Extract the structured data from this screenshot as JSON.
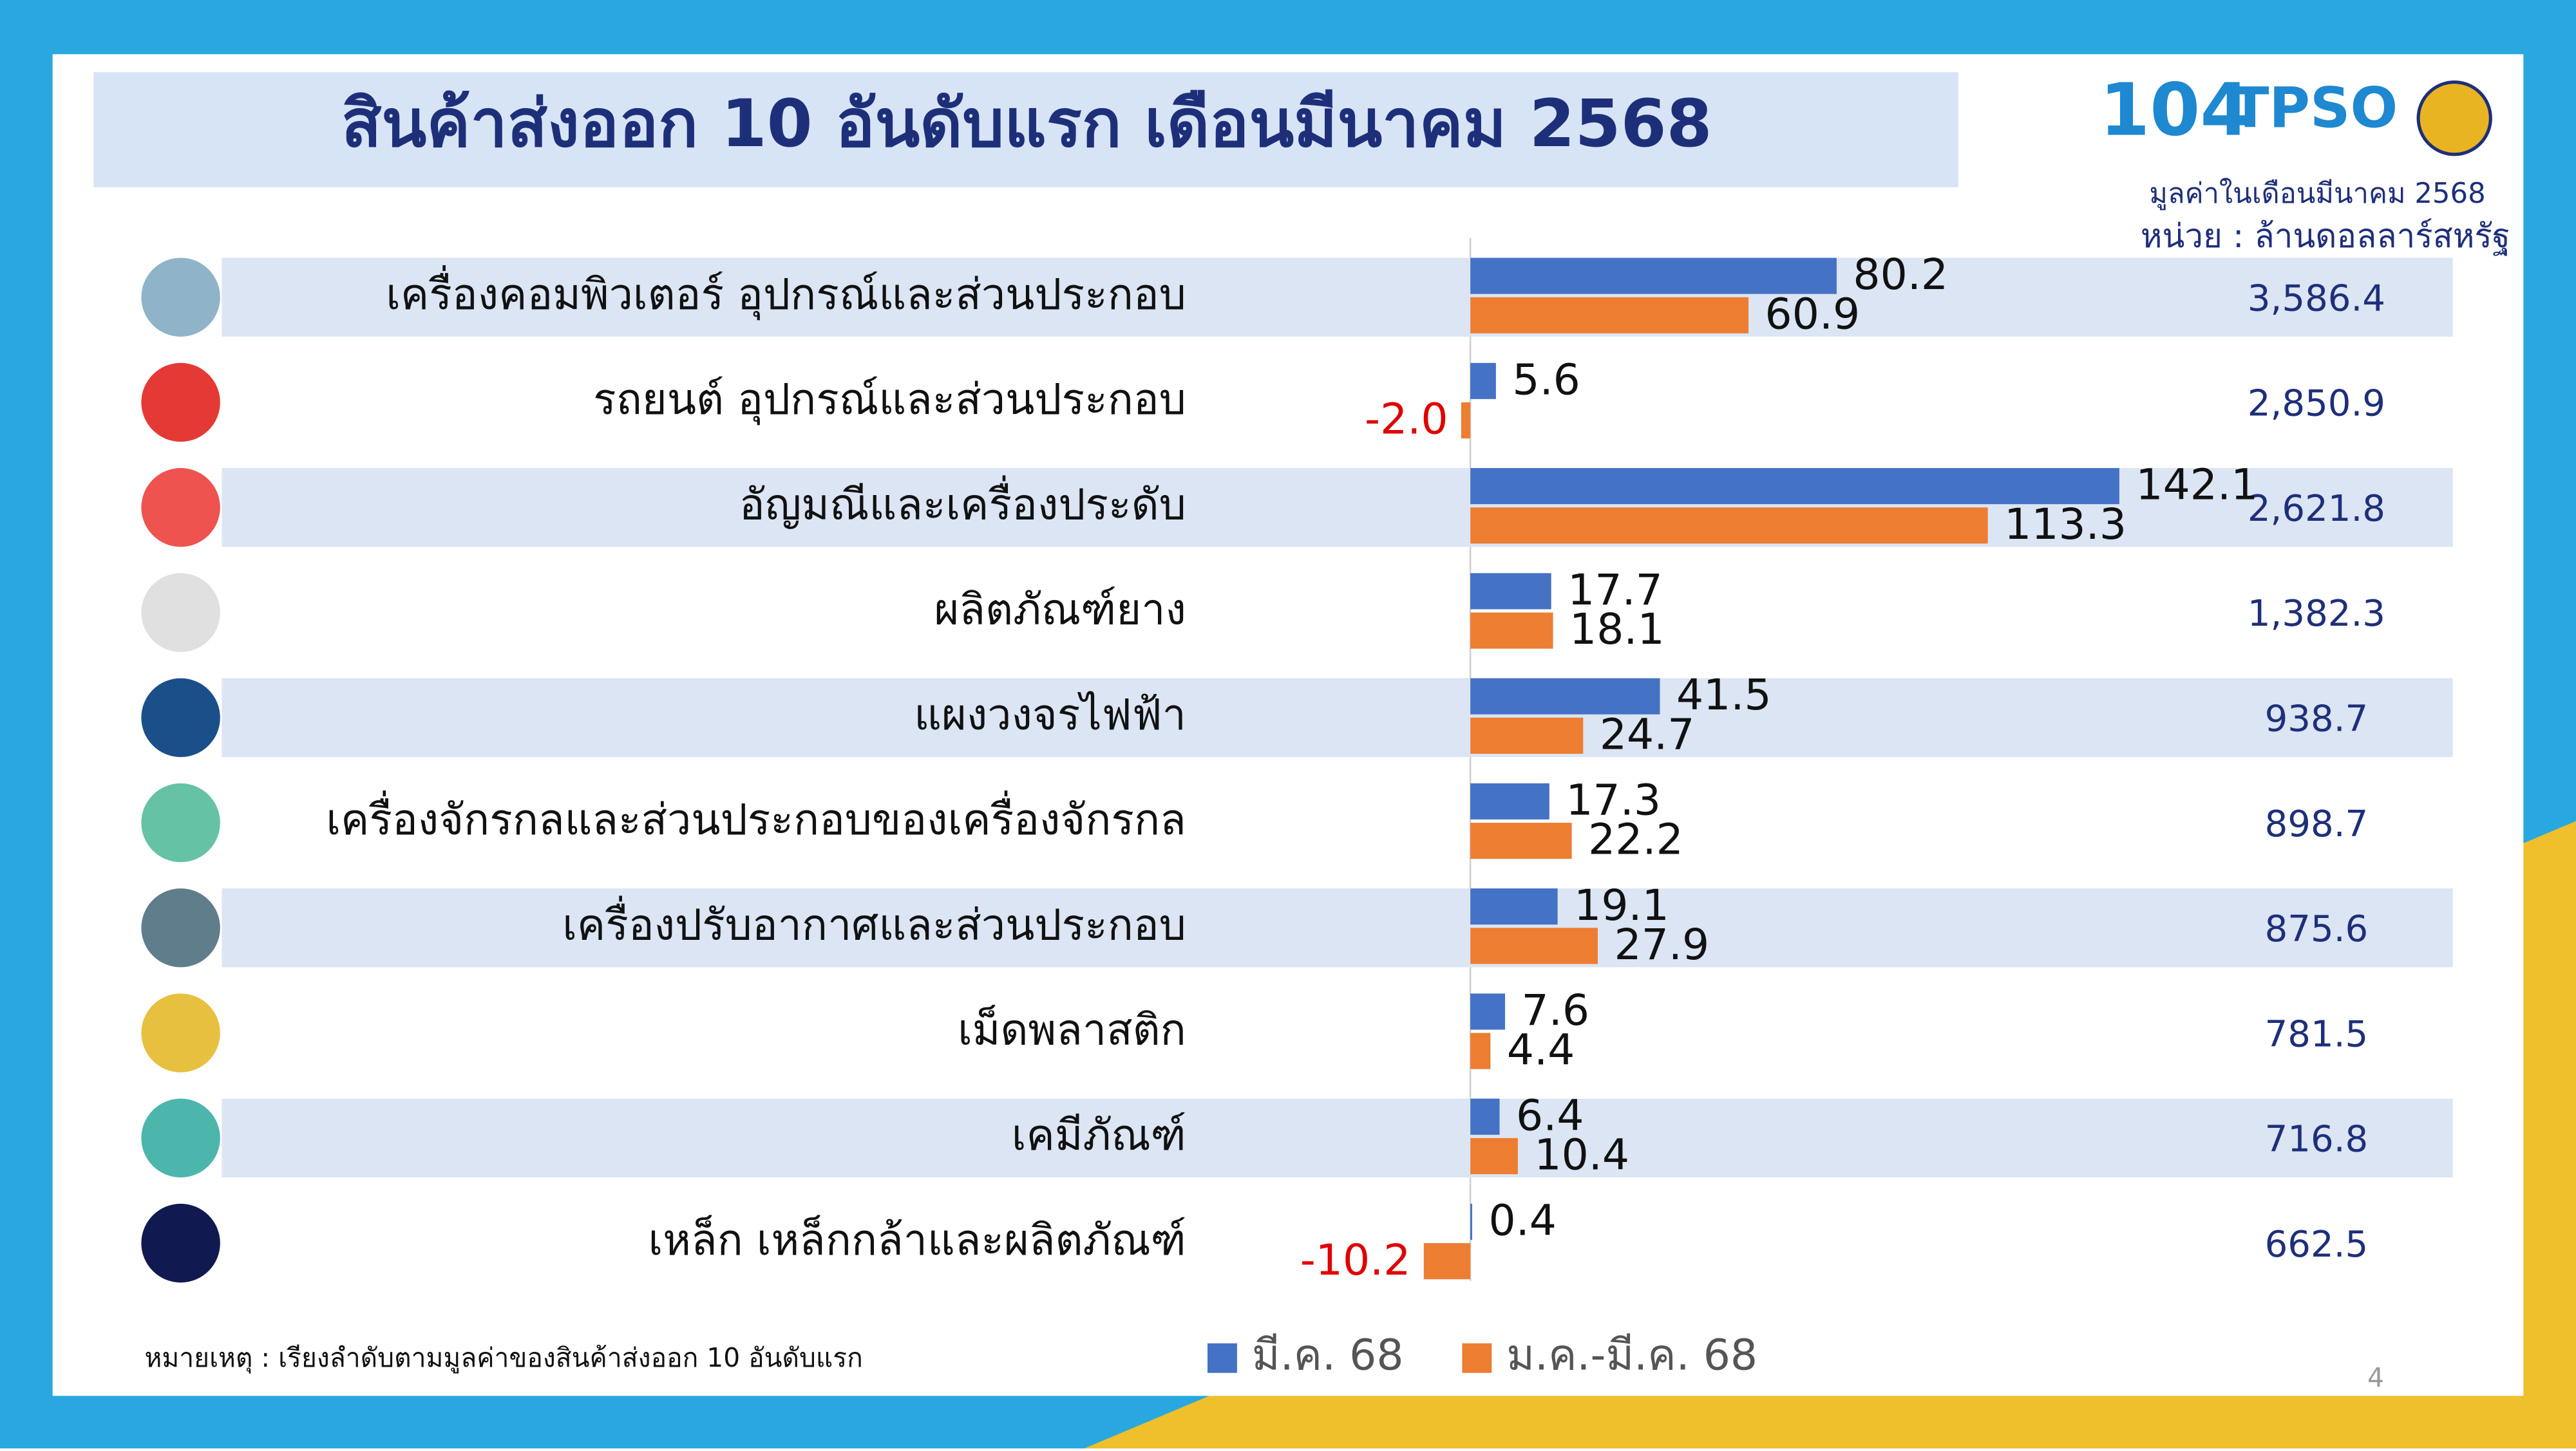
{
  "chart_data": {
    "type": "bar",
    "title": "สินค้าส่งออก 10 อันดับแรก เดือนมีนาคม 2568",
    "subtitle": "มูลค่าในเดือนมีนาคม 2568",
    "unit": "หน่วย : ล้านดอลลาร์สหรัฐ",
    "note": "หมายเหตุ : เรียงลำดับตามมูลค่าของสินค้าส่งออก 10 อันดับแรก",
    "page_number": "4",
    "logo": "TPSO",
    "categories": [
      "เครื่องคอมพิวเตอร์ อุปกรณ์และส่วนประกอบ",
      "รถยนต์ อุปกรณ์และส่วนประกอบ",
      "อัญมณีและเครื่องประดับ",
      "ผลิตภัณฑ์ยาง",
      "แผงวงจรไฟฟ้า",
      "เครื่องจักรกลและส่วนประกอบของเครื่องจักรกล",
      "เครื่องปรับอากาศและส่วนประกอบ",
      "เม็ดพลาสติก",
      "เคมีภัณฑ์",
      "เหล็ก เหล็กกล้าและผลิตภัณฑ์"
    ],
    "value_column": [
      "3,586.4",
      "2,850.9",
      "2,621.8",
      "1,382.3",
      "938.7",
      "898.7",
      "875.6",
      "781.5",
      "716.8",
      "662.5"
    ],
    "series": [
      {
        "name": "มี.ค. 68",
        "color": "#4472c4",
        "values": [
          80.2,
          5.6,
          142.1,
          17.7,
          41.5,
          17.3,
          19.1,
          7.6,
          6.4,
          0.4
        ]
      },
      {
        "name": "ม.ค.-มี.ค. 68",
        "color": "#ed7d31",
        "values": [
          60.9,
          -2.0,
          113.3,
          18.1,
          24.7,
          22.2,
          27.9,
          4.4,
          10.4,
          -10.2
        ],
        "value_labels": [
          "60.9",
          "-2.0",
          "113.3",
          "18.1",
          "24.7",
          "22.2",
          "27.9",
          "4.4",
          "10.4",
          "-10.2"
        ]
      }
    ],
    "negative_color": "#e00000",
    "xlim": [
      -15,
      150
    ]
  }
}
